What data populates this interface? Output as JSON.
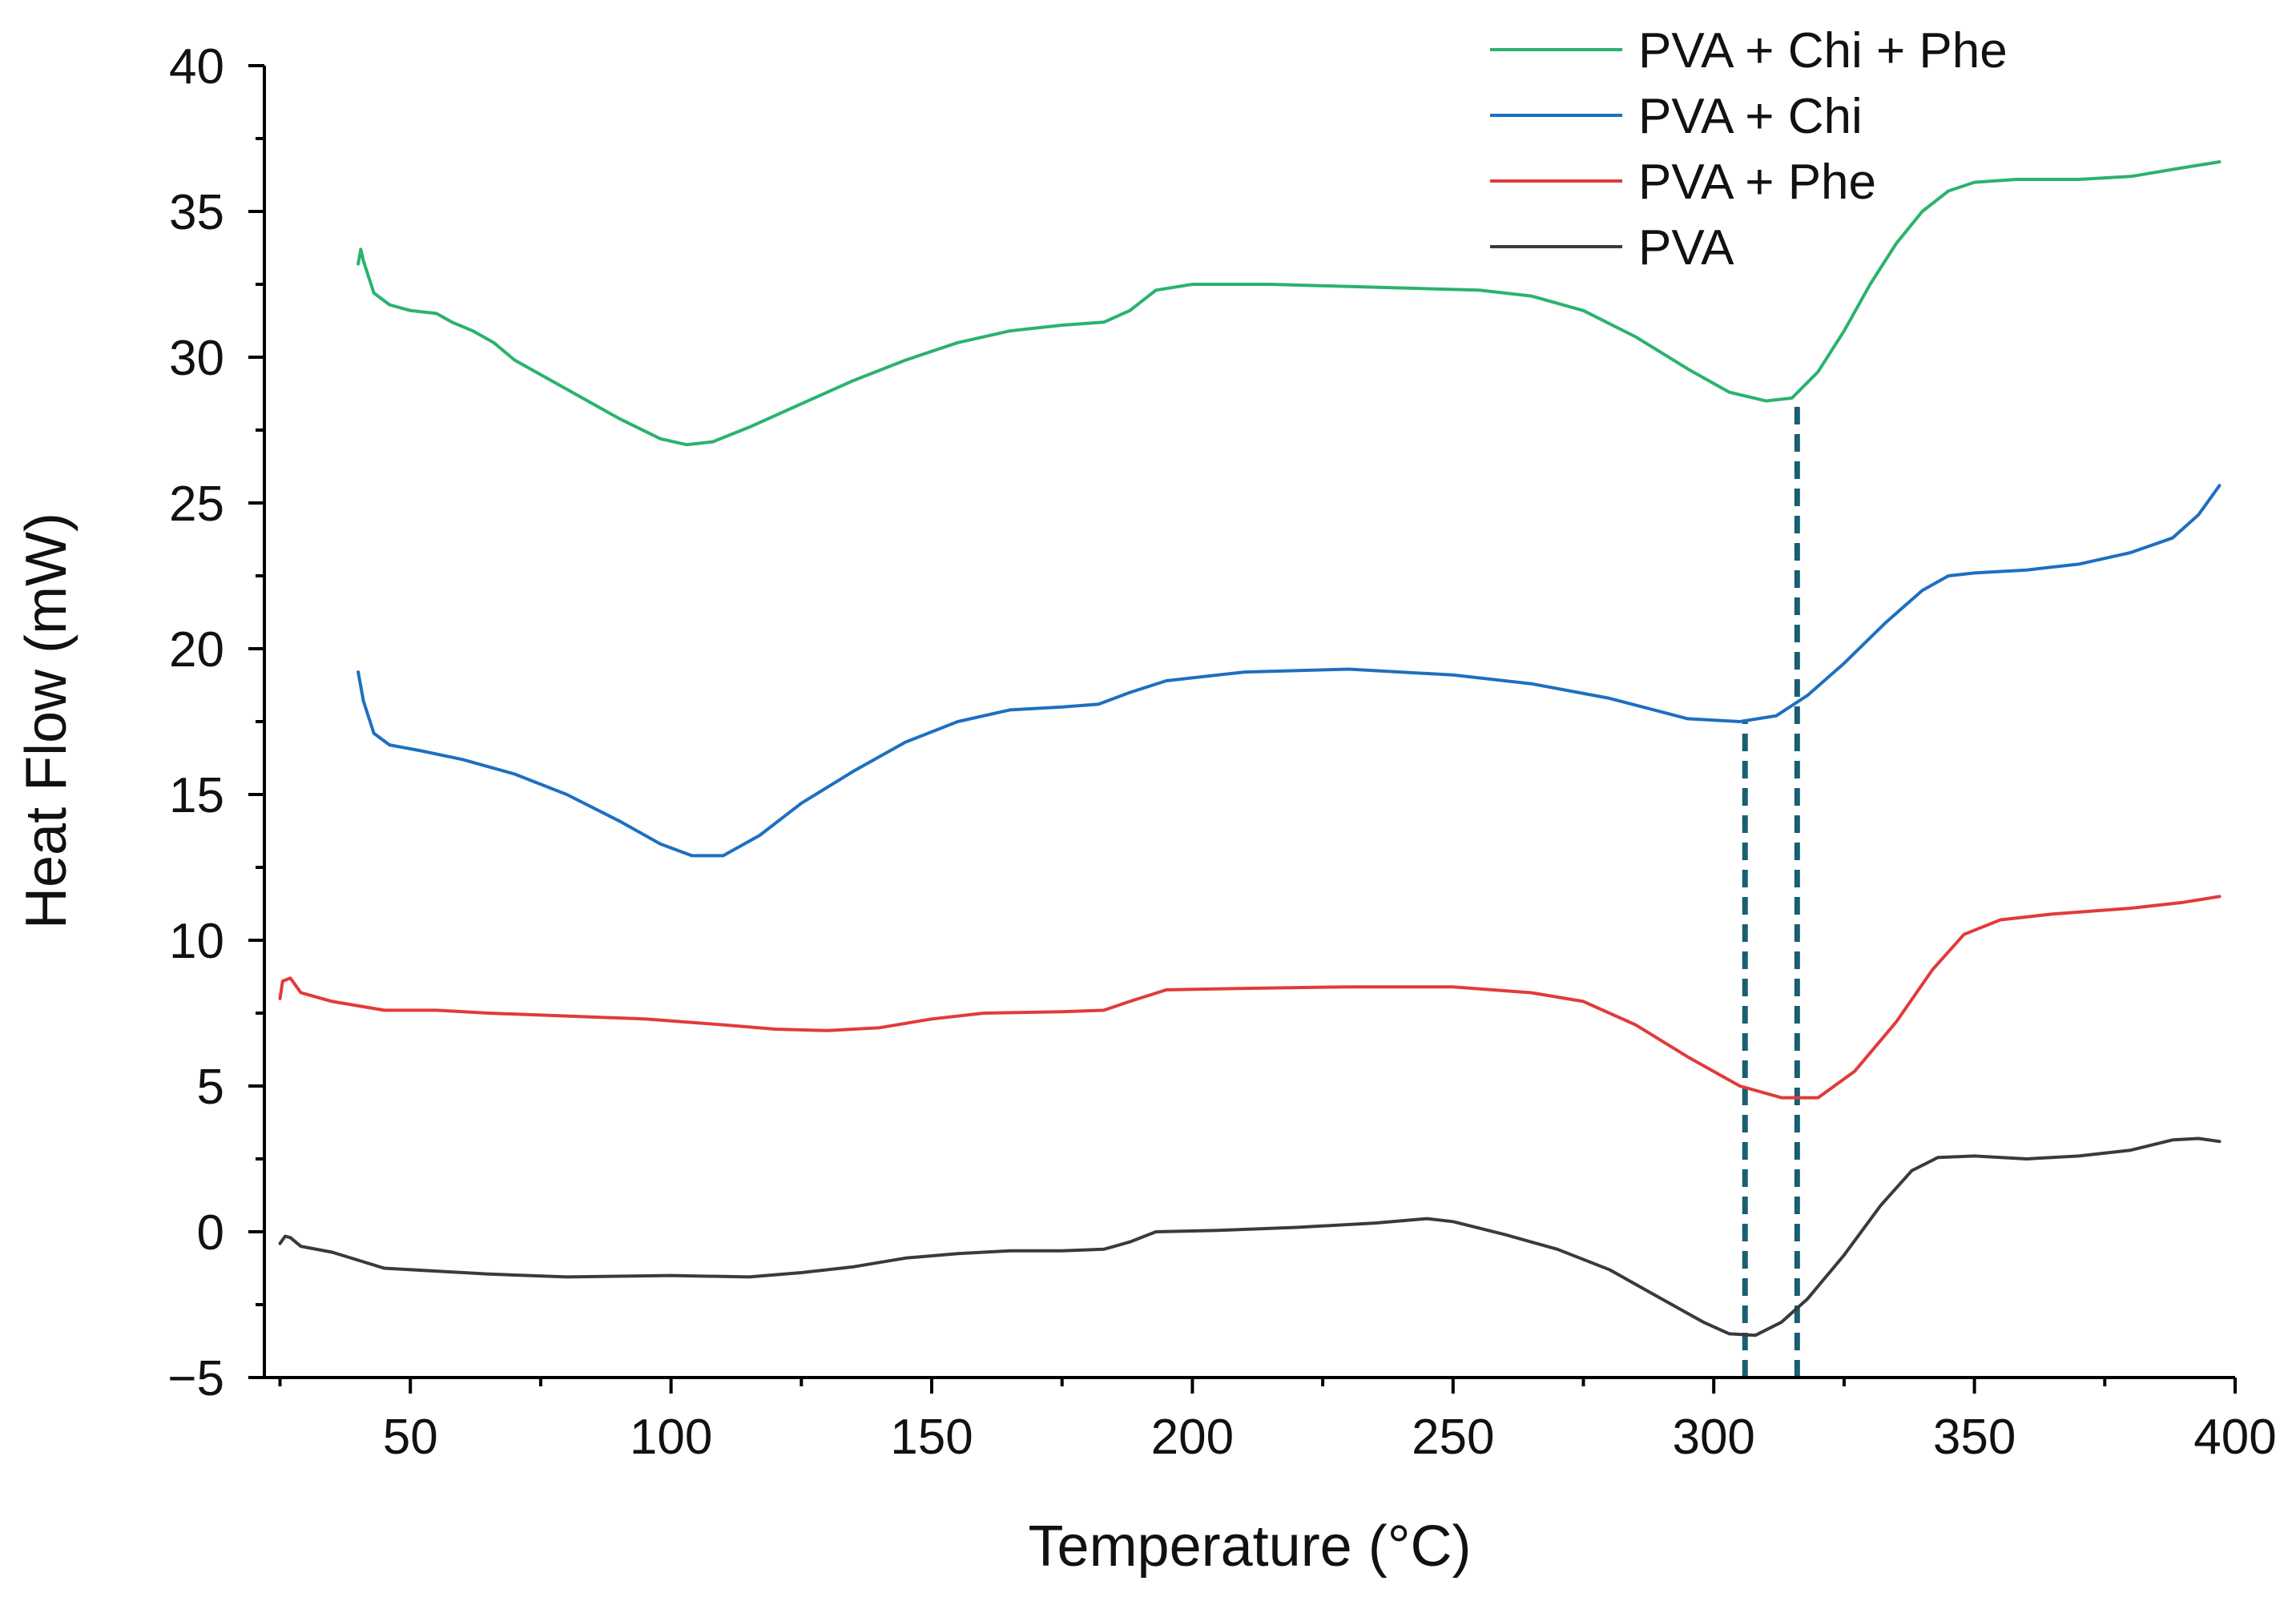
{
  "chart_data": {
    "type": "line",
    "title": "",
    "xlabel": "Temperature (°C)",
    "ylabel": "Heat Flow (mW)",
    "xlim": [
      22,
      400
    ],
    "ylim": [
      -5,
      40
    ],
    "x_ticks": [
      50,
      100,
      150,
      200,
      250,
      300,
      350,
      400
    ],
    "y_ticks": [
      -5,
      0,
      5,
      10,
      15,
      20,
      25,
      30,
      35,
      40
    ],
    "x_tick_labels": [
      "50",
      "100",
      "150",
      "200",
      "250",
      "300",
      "350",
      "400"
    ],
    "y_tick_labels": [
      "−5",
      "0",
      "5",
      "10",
      "15",
      "20",
      "25",
      "30",
      "35",
      "40"
    ],
    "legend_position": "top-right",
    "series": [
      {
        "name": "PVA + Chi + Phe",
        "color": "#2ab36e",
        "points": [
          [
            40,
            33.2
          ],
          [
            40.5,
            33.7
          ],
          [
            41,
            33.3
          ],
          [
            43,
            32.2
          ],
          [
            46,
            31.8
          ],
          [
            50,
            31.6
          ],
          [
            55,
            31.5
          ],
          [
            58,
            31.2
          ],
          [
            62,
            30.9
          ],
          [
            66,
            30.5
          ],
          [
            70,
            29.9
          ],
          [
            80,
            28.9
          ],
          [
            90,
            27.9
          ],
          [
            98,
            27.2
          ],
          [
            103,
            27.0
          ],
          [
            108,
            27.1
          ],
          [
            115,
            27.6
          ],
          [
            125,
            28.4
          ],
          [
            135,
            29.2
          ],
          [
            145,
            29.9
          ],
          [
            155,
            30.5
          ],
          [
            165,
            30.9
          ],
          [
            175,
            31.1
          ],
          [
            183,
            31.2
          ],
          [
            188,
            31.6
          ],
          [
            193,
            32.3
          ],
          [
            200,
            32.5
          ],
          [
            215,
            32.5
          ],
          [
            235,
            32.4
          ],
          [
            255,
            32.3
          ],
          [
            265,
            32.1
          ],
          [
            275,
            31.6
          ],
          [
            285,
            30.7
          ],
          [
            295,
            29.6
          ],
          [
            303,
            28.8
          ],
          [
            310,
            28.5
          ],
          [
            315,
            28.6
          ],
          [
            320,
            29.5
          ],
          [
            325,
            30.9
          ],
          [
            330,
            32.5
          ],
          [
            335,
            33.9
          ],
          [
            340,
            35.0
          ],
          [
            345,
            35.7
          ],
          [
            350,
            36.0
          ],
          [
            358,
            36.1
          ],
          [
            370,
            36.1
          ],
          [
            380,
            36.2
          ],
          [
            390,
            36.5
          ],
          [
            397,
            36.7
          ]
        ]
      },
      {
        "name": "PVA + Chi",
        "color": "#1e6fc0",
        "points": [
          [
            40,
            19.2
          ],
          [
            41,
            18.2
          ],
          [
            43,
            17.1
          ],
          [
            46,
            16.7
          ],
          [
            52,
            16.5
          ],
          [
            60,
            16.2
          ],
          [
            70,
            15.7
          ],
          [
            80,
            15.0
          ],
          [
            90,
            14.1
          ],
          [
            98,
            13.3
          ],
          [
            104,
            12.9
          ],
          [
            110,
            12.9
          ],
          [
            117,
            13.6
          ],
          [
            125,
            14.7
          ],
          [
            135,
            15.8
          ],
          [
            145,
            16.8
          ],
          [
            155,
            17.5
          ],
          [
            165,
            17.9
          ],
          [
            175,
            18.0
          ],
          [
            182,
            18.1
          ],
          [
            188,
            18.5
          ],
          [
            195,
            18.9
          ],
          [
            210,
            19.2
          ],
          [
            230,
            19.3
          ],
          [
            250,
            19.1
          ],
          [
            265,
            18.8
          ],
          [
            280,
            18.3
          ],
          [
            295,
            17.6
          ],
          [
            305,
            17.5
          ],
          [
            312,
            17.7
          ],
          [
            318,
            18.4
          ],
          [
            325,
            19.5
          ],
          [
            333,
            20.9
          ],
          [
            340,
            22.0
          ],
          [
            345,
            22.5
          ],
          [
            350,
            22.6
          ],
          [
            360,
            22.7
          ],
          [
            370,
            22.9
          ],
          [
            380,
            23.3
          ],
          [
            388,
            23.8
          ],
          [
            393,
            24.6
          ],
          [
            397,
            25.6
          ]
        ]
      },
      {
        "name": "PVA + Phe",
        "color": "#e23a3a",
        "points": [
          [
            25,
            8.0
          ],
          [
            25.5,
            8.6
          ],
          [
            27,
            8.7
          ],
          [
            29,
            8.2
          ],
          [
            35,
            7.9
          ],
          [
            45,
            7.6
          ],
          [
            55,
            7.6
          ],
          [
            65,
            7.5
          ],
          [
            80,
            7.4
          ],
          [
            95,
            7.3
          ],
          [
            110,
            7.1
          ],
          [
            120,
            6.95
          ],
          [
            130,
            6.9
          ],
          [
            140,
            7.0
          ],
          [
            150,
            7.3
          ],
          [
            160,
            7.5
          ],
          [
            175,
            7.55
          ],
          [
            183,
            7.6
          ],
          [
            188,
            7.9
          ],
          [
            195,
            8.3
          ],
          [
            210,
            8.35
          ],
          [
            230,
            8.4
          ],
          [
            250,
            8.4
          ],
          [
            265,
            8.2
          ],
          [
            275,
            7.9
          ],
          [
            285,
            7.1
          ],
          [
            295,
            6.0
          ],
          [
            305,
            5.0
          ],
          [
            313,
            4.6
          ],
          [
            320,
            4.6
          ],
          [
            327,
            5.5
          ],
          [
            335,
            7.2
          ],
          [
            342,
            9.0
          ],
          [
            348,
            10.2
          ],
          [
            355,
            10.7
          ],
          [
            365,
            10.9
          ],
          [
            380,
            11.1
          ],
          [
            390,
            11.3
          ],
          [
            397,
            11.5
          ]
        ]
      },
      {
        "name": "PVA",
        "color": "#3a3a3a",
        "points": [
          [
            25,
            -0.4
          ],
          [
            26,
            -0.15
          ],
          [
            27,
            -0.2
          ],
          [
            29,
            -0.5
          ],
          [
            35,
            -0.7
          ],
          [
            45,
            -1.25
          ],
          [
            55,
            -1.35
          ],
          [
            65,
            -1.45
          ],
          [
            80,
            -1.55
          ],
          [
            100,
            -1.5
          ],
          [
            115,
            -1.55
          ],
          [
            125,
            -1.4
          ],
          [
            135,
            -1.2
          ],
          [
            145,
            -0.9
          ],
          [
            155,
            -0.75
          ],
          [
            165,
            -0.65
          ],
          [
            175,
            -0.65
          ],
          [
            183,
            -0.6
          ],
          [
            188,
            -0.35
          ],
          [
            193,
            0.0
          ],
          [
            205,
            0.05
          ],
          [
            220,
            0.15
          ],
          [
            235,
            0.3
          ],
          [
            245,
            0.45
          ],
          [
            250,
            0.35
          ],
          [
            260,
            -0.1
          ],
          [
            270,
            -0.6
          ],
          [
            280,
            -1.3
          ],
          [
            290,
            -2.3
          ],
          [
            298,
            -3.1
          ],
          [
            303,
            -3.5
          ],
          [
            308,
            -3.55
          ],
          [
            313,
            -3.1
          ],
          [
            318,
            -2.3
          ],
          [
            325,
            -0.8
          ],
          [
            332,
            0.9
          ],
          [
            338,
            2.1
          ],
          [
            343,
            2.55
          ],
          [
            350,
            2.6
          ],
          [
            360,
            2.5
          ],
          [
            370,
            2.6
          ],
          [
            380,
            2.8
          ],
          [
            388,
            3.15
          ],
          [
            393,
            3.2
          ],
          [
            397,
            3.1
          ]
        ]
      }
    ],
    "reference_lines": [
      {
        "x": 306,
        "y_from": -5,
        "y_to": 17.5,
        "color": "#1a5e72",
        "style": "dashed"
      },
      {
        "x": 316,
        "y_from": -5,
        "y_to": 28.5,
        "color": "#1a5e72",
        "style": "dashed"
      }
    ]
  }
}
